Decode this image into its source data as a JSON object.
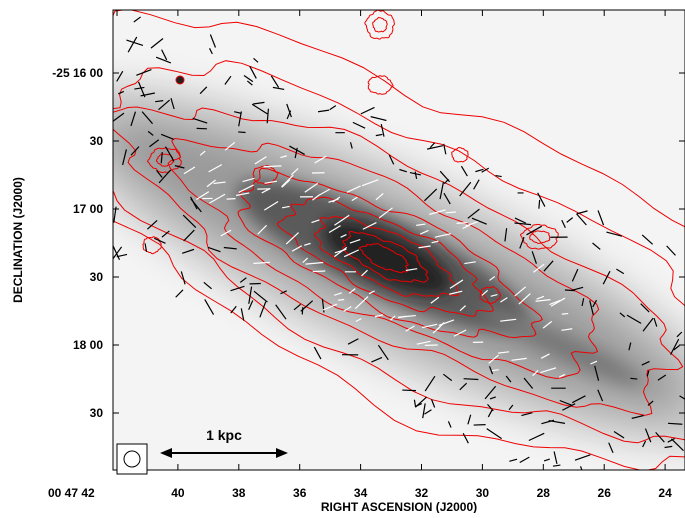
{
  "figure": {
    "x_axis": {
      "label": "RIGHT ASCENSION (J2000)",
      "ticks": [
        "00 47 42",
        "40",
        "38",
        "36",
        "34",
        "32",
        "30",
        "28",
        "26",
        "24"
      ]
    },
    "y_axis": {
      "label": "DECLINATION (J2000)",
      "ticks": [
        "-25 16 00",
        "30",
        "17 00",
        "30",
        "18 00",
        "30"
      ]
    },
    "scale_bar": "1 kpc"
  }
}
